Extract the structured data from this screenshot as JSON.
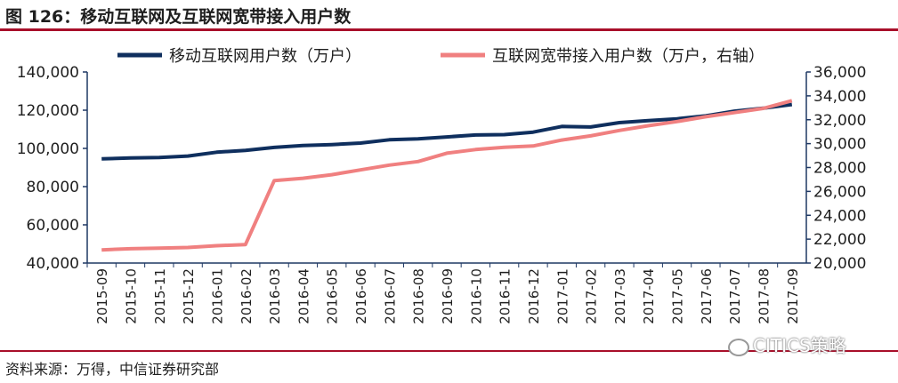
{
  "header": {
    "title": "图 126：移动互联网及互联网宽带接入用户数"
  },
  "footer": {
    "source": "资料来源：万得，中信证券研究部",
    "watermark": "CITICS策略"
  },
  "colors": {
    "mobile": "#0f2f5e",
    "broadband": "#f08080",
    "axis": "#1f3864",
    "rule": "#a80f2a"
  },
  "chart_data": {
    "type": "line",
    "categories": [
      "2015-09",
      "2015-10",
      "2015-11",
      "2015-12",
      "2016-01",
      "2016-02",
      "2016-03",
      "2016-04",
      "2016-05",
      "2016-06",
      "2016-07",
      "2016-08",
      "2016-09",
      "2016-10",
      "2016-11",
      "2016-12",
      "2017-01",
      "2017-02",
      "2017-03",
      "2017-04",
      "2017-05",
      "2017-06",
      "2017-07",
      "2017-08",
      "2017-09"
    ],
    "series": [
      {
        "name": "移动互联网用户数（万户）",
        "axis": "left",
        "values": [
          94500,
          95000,
          95200,
          96000,
          98000,
          99000,
          100500,
          101500,
          102000,
          102800,
          104500,
          105000,
          106000,
          107000,
          107200,
          108500,
          111500,
          111200,
          113500,
          114500,
          115500,
          117000,
          119500,
          121000,
          123000
        ]
      },
      {
        "name": "互联网宽带接入用户数（万户，右轴）",
        "axis": "right",
        "values": [
          21100,
          21200,
          21250,
          21300,
          21450,
          21550,
          26900,
          27100,
          27400,
          27800,
          28200,
          28500,
          29200,
          29500,
          29700,
          29800,
          30300,
          30650,
          31100,
          31500,
          31850,
          32250,
          32600,
          32950,
          33600
        ]
      }
    ],
    "y_left": {
      "min": 40000,
      "max": 140000,
      "ticks": [
        "40,000",
        "60,000",
        "80,000",
        "100,000",
        "120,000",
        "140,000"
      ]
    },
    "y_right": {
      "min": 20000,
      "max": 36000,
      "ticks": [
        "20,000",
        "22,000",
        "24,000",
        "26,000",
        "28,000",
        "30,000",
        "32,000",
        "34,000",
        "36,000"
      ]
    },
    "legend": "top",
    "grid": false
  }
}
